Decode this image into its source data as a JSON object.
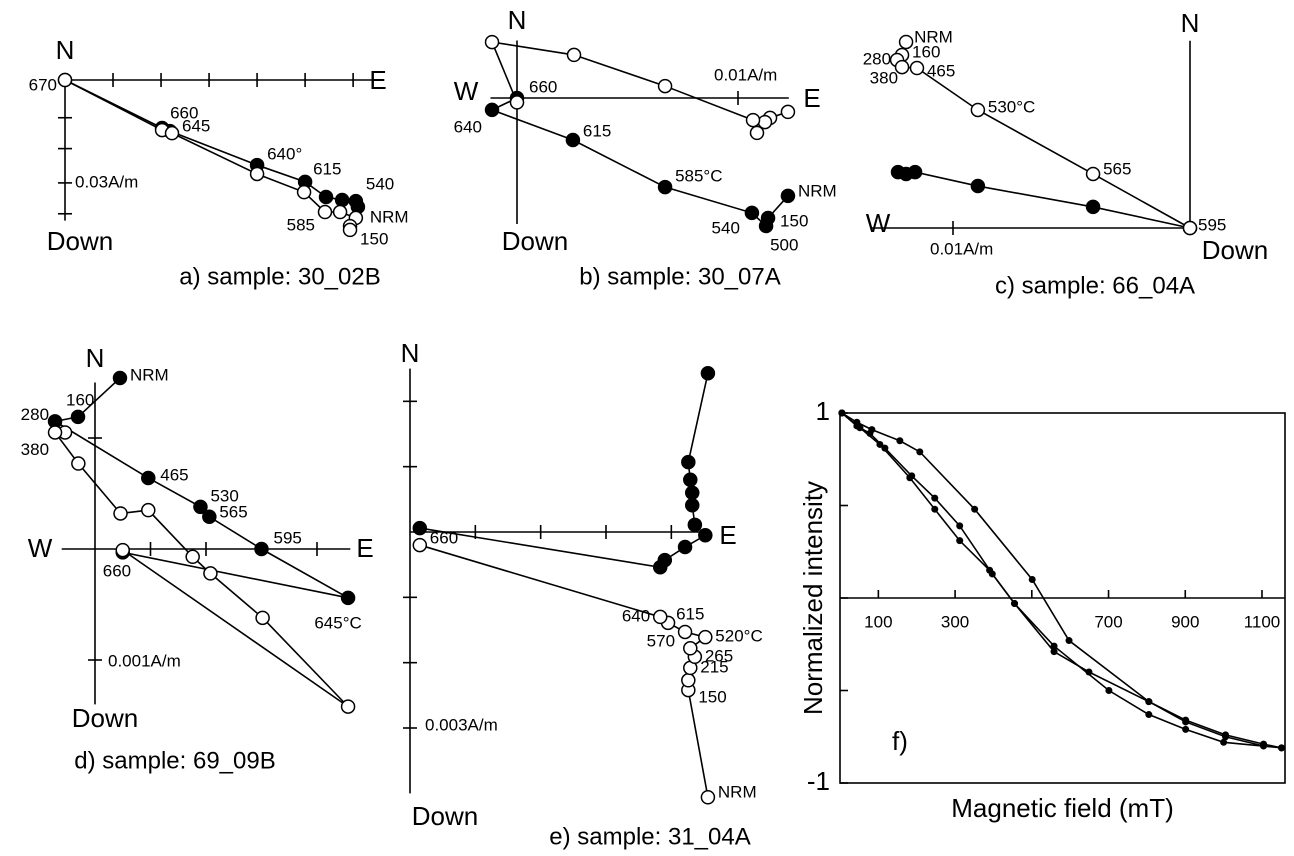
{
  "chart_data": [
    {
      "type": "zijderveld",
      "title": "a) sample: 30_02B",
      "north_label": "N",
      "east_label": "E",
      "down_label": "Down",
      "scale_label": "0.03A/m",
      "xlim": [
        0,
        0.09
      ],
      "ylim": [
        -0.041,
        0
      ],
      "xticks": [
        0.014,
        0.028,
        0.042,
        0.056,
        0.07,
        0.084
      ],
      "yticks": [
        -0.011,
        -0.02,
        -0.03,
        -0.039
      ],
      "series": [
        {
          "marker": "filled",
          "x": [
            0,
            0.0283,
            0.0306,
            0.056,
            0.07,
            0.0761,
            0.0808,
            0.0848,
            0.0854
          ],
          "y": [
            0,
            -0.014,
            -0.0149,
            -0.0248,
            -0.0297,
            -0.0341,
            -0.035,
            -0.0353,
            -0.037
          ],
          "point_labels": [
            "670",
            "660",
            null,
            "640°",
            "615",
            null,
            null,
            "540",
            null
          ]
        },
        {
          "marker": "open",
          "x": [
            0,
            0.0283,
            0.0312,
            0.056,
            0.0697,
            0.0758,
            0.0802,
            0.0848,
            0.0831,
            0.0831
          ],
          "y": [
            0,
            -0.0146,
            -0.0155,
            -0.0274,
            -0.0327,
            -0.0385,
            -0.0385,
            -0.0402,
            -0.0426,
            -0.0437
          ],
          "point_labels": [
            null,
            null,
            "645",
            null,
            null,
            "585",
            null,
            "NRM",
            null,
            "150"
          ]
        }
      ]
    },
    {
      "type": "zijderveld",
      "title": "b) sample: 30_07A",
      "north_label": "N",
      "east_label": "E",
      "west_label": "W",
      "down_label": "Down",
      "scale_label": "0.01A/m",
      "xlim": [
        -0.0012,
        0.0123
      ],
      "ylim": [
        -0.0057,
        0.0026
      ],
      "xticks": [
        0.01
      ],
      "yticks": [],
      "series": [
        {
          "marker": "filled",
          "x": [
            0.01226,
            0.01136,
            0.01127,
            0.01063,
            0.0067,
            0.00253,
            -0.00113,
            0
          ],
          "y": [
            -0.00443,
            -0.00543,
            -0.00579,
            -0.0052,
            -0.00403,
            -0.0019,
            -0.00054,
            0
          ],
          "point_labels": [
            "NRM",
            "150",
            "500",
            "540",
            "585°C",
            "615",
            "640",
            "660"
          ]
        },
        {
          "marker": "open",
          "x": [
            0.01226,
            0.01145,
            0.01122,
            0.01086,
            0.01068,
            0.0067,
            0.00258,
            -0.00113,
            0
          ],
          "y": [
            -0.00063,
            -0.0009,
            -0.00109,
            -0.00158,
            -0.001,
            0.00054,
            0.00195,
            0.00253,
            -0.0002
          ],
          "point_labels": [
            null,
            null,
            null,
            null,
            null,
            null,
            null,
            null,
            null
          ]
        }
      ]
    },
    {
      "type": "zijderveld",
      "title": "c) sample: 66_04A",
      "north_label": "N",
      "west_label": "W",
      "down_label": "Down",
      "scale_label": "0.01A/m",
      "xlim": [
        -0.0135,
        0
      ],
      "ylim": [
        0,
        0.0079
      ],
      "xticks": [
        -0.01
      ],
      "yticks": [],
      "series": [
        {
          "marker": "filled",
          "x": [
            -0.01232,
            -0.01198,
            -0.0116,
            -0.00895,
            -0.00409,
            0
          ],
          "y": [
            0.00236,
            0.00228,
            0.00236,
            0.00177,
            0.00089,
            0
          ],
          "point_labels": [
            null,
            null,
            null,
            null,
            null,
            null
          ]
        },
        {
          "marker": "open",
          "x": [
            -0.01198,
            -0.01215,
            -0.01236,
            -0.01215,
            -0.01152,
            -0.00895,
            -0.00409,
            0
          ],
          "y": [
            0.00785,
            0.0073,
            0.00709,
            0.00679,
            0.00675,
            0.00498,
            0.00228,
            0
          ],
          "point_labels": [
            "NRM",
            "160",
            "280",
            "380",
            "465",
            "530°C",
            "565",
            "595"
          ]
        }
      ]
    },
    {
      "type": "zijderveld",
      "title": "d) sample: 69_09B",
      "north_label": "N",
      "east_label": "E",
      "west_label": "W",
      "down_label": "Down",
      "scale_label": "0.001A/m",
      "xlim": [
        -0.0003,
        0.0023
      ],
      "ylim": [
        -0.0014,
        0.0015
      ],
      "xticks": [
        0.0005,
        0.001,
        0.0015,
        0.002
      ],
      "yticks": [
        0.001,
        -0.001
      ],
      "series": [
        {
          "marker": "filled",
          "x": [
            0.000225,
            -0.000153,
            -0.00036,
            0.00048,
            0.00095,
            0.00103,
            0.0015,
            0.00228,
            0.00025
          ],
          "y": [
            0.00154,
            0.00119,
            0.00115,
            0.00064,
            0.00038,
            0.00029,
            0,
            -0.00044,
            -3e-05
          ],
          "point_labels": [
            "NRM",
            "160",
            "280",
            "465",
            "530",
            "565",
            "595",
            "645°C",
            null
          ]
        },
        {
          "marker": "open",
          "x": [
            -0.00027,
            -0.00036,
            -0.00015,
            0.00023,
            0.00048,
            0.00088,
            0.00104,
            0.00151,
            0.00228,
            0.00025
          ],
          "y": [
            0.00105,
            0.00105,
            0.00077,
            0.00032,
            0.00035,
            -7e-05,
            -0.00022,
            -0.00062,
            -0.00142,
            -1e-05
          ],
          "point_labels": [
            null,
            "380",
            null,
            null,
            null,
            null,
            null,
            null,
            null,
            "660"
          ]
        }
      ]
    },
    {
      "type": "zijderveld",
      "title": "e) sample: 31_04A",
      "north_label": "N",
      "east_label": "E",
      "down_label": "Down",
      "scale_label": "0.003A/m",
      "xlim": [
        0,
        0.0045
      ],
      "ylim": [
        -0.004,
        0.0025
      ],
      "xticks": [
        0.001,
        0.002,
        0.003,
        0.004
      ],
      "yticks": [
        0.002,
        0.001,
        -0.001,
        -0.002,
        -0.003
      ],
      "series": [
        {
          "marker": "filled",
          "x": [
            0.00456,
            0.00426,
            0.00429,
            0.00432,
            0.00432,
            0.00436,
            0.00452,
            0.00421,
            0.0039,
            0.00383,
            0.00015
          ],
          "y": [
            0.00243,
            0.00107,
            0.0008,
            0.0006,
            0.00041,
            0.00011,
            -5e-05,
            -0.00023,
            -0.00043,
            -0.00054,
            6e-05
          ],
          "point_labels": [
            null,
            null,
            null,
            null,
            null,
            null,
            null,
            null,
            null,
            null,
            null
          ]
        },
        {
          "marker": "open",
          "x": [
            0.00456,
            0.00426,
            0.00426,
            0.00429,
            0.00436,
            0.00429,
            0.00452,
            0.00421,
            0.00395,
            0.00383,
            0.00015
          ],
          "y": [
            -0.00406,
            -0.00242,
            -0.00227,
            -0.00208,
            -0.00191,
            -0.00178,
            -0.00161,
            -0.00153,
            -0.00139,
            -0.0013,
            -0.0002
          ],
          "point_labels": [
            "NRM",
            "150",
            null,
            "215",
            "265",
            null,
            "520°C",
            "570",
            "615",
            "640",
            "660"
          ]
        }
      ]
    },
    {
      "type": "line",
      "annotation": "f)",
      "x_label": "Magnetic field (mT)",
      "y_label": "Normalized intensity",
      "xlim": [
        0,
        1160
      ],
      "ylim": [
        -1,
        1
      ],
      "xticks": [
        100,
        300,
        700,
        900,
        1100
      ],
      "x_minor_ticks": [
        500
      ],
      "yticks": [
        1,
        -1
      ],
      "y_minor_ticks": [
        0.5,
        0,
        -0.5
      ],
      "color": "#000000",
      "series": [
        {
          "x": [
            5,
            44,
            83,
            156,
            208,
            351,
            501,
            597,
            805,
            901,
            1005,
            1104,
            1151
          ],
          "values": [
            1,
            0.95,
            0.91,
            0.85,
            0.79,
            0.48,
            0.1,
            -0.23,
            -0.56,
            -0.66,
            -0.74,
            -0.79,
            -0.81
          ]
        },
        {
          "x": [
            5,
            44,
            78,
            117,
            187,
            247,
            312,
            397,
            455,
            558,
            701,
            805,
            901,
            1000,
            1151
          ],
          "values": [
            1,
            0.93,
            0.89,
            0.81,
            0.66,
            0.54,
            0.39,
            0.13,
            -0.03,
            -0.26,
            -0.5,
            -0.63,
            -0.71,
            -0.78,
            -0.81
          ]
        },
        {
          "x": [
            5,
            52,
            104,
            182,
            247,
            312,
            390,
            455,
            558,
            649,
            805,
            901,
            1005,
            1104
          ],
          "values": [
            1,
            0.92,
            0.83,
            0.65,
            0.48,
            0.31,
            0.15,
            -0.03,
            -0.29,
            -0.4,
            -0.56,
            -0.67,
            -0.75,
            -0.8
          ]
        }
      ]
    }
  ]
}
